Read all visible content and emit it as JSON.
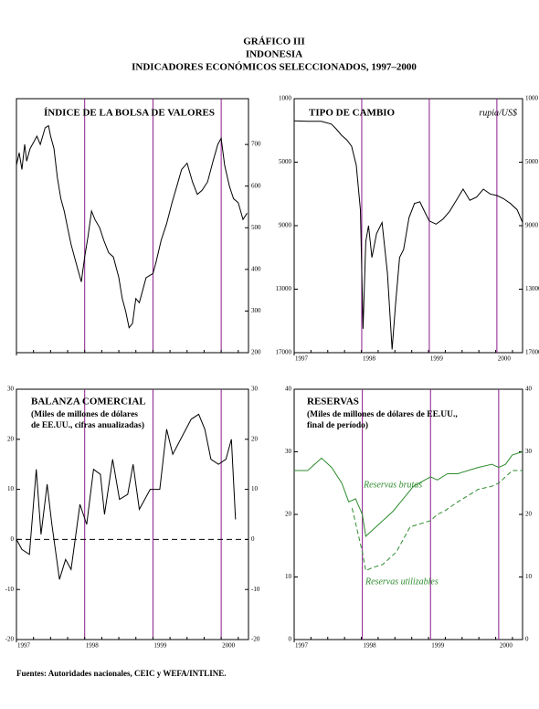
{
  "header": {
    "lines": [
      "GRÁFICO III",
      "INDONESIA",
      "INDICADORES ECONÓMICOS SELECCIONADOS, 1997–2000"
    ]
  },
  "footer": "Fuentes: Autoridades nacionales, CEIC y WEFA/INTLINE.",
  "chart_data": [
    {
      "type": "line",
      "title": "ÍNDICE DE LA BOLSA DE VALORES",
      "xlim": [
        1997,
        2000.4
      ],
      "xticks": [
        1997,
        1998,
        1999,
        2000
      ],
      "xtick_labels": false,
      "ylim": [
        200,
        810
      ],
      "yticks": [
        200,
        300,
        400,
        500,
        600,
        700
      ],
      "ytick_sides": [
        "right"
      ],
      "series": [
        {
          "color": "#000000",
          "x": [
            1997.0,
            1997.04,
            1997.08,
            1997.12,
            1997.15,
            1997.2,
            1997.25,
            1997.3,
            1997.35,
            1997.42,
            1997.47,
            1997.5,
            1997.55,
            1997.6,
            1997.65,
            1997.7,
            1997.75,
            1997.8,
            1997.85,
            1997.9,
            1997.95,
            1998.0,
            1998.05,
            1998.1,
            1998.15,
            1998.22,
            1998.28,
            1998.35,
            1998.42,
            1998.5,
            1998.55,
            1998.6,
            1998.65,
            1998.7,
            1998.75,
            1998.8,
            1998.9,
            1999.0,
            1999.05,
            1999.12,
            1999.2,
            1999.28,
            1999.35,
            1999.42,
            1999.5,
            1999.58,
            1999.65,
            1999.72,
            1999.8,
            1999.88,
            1999.95,
            2000.0,
            2000.05,
            2000.12,
            2000.18,
            2000.25,
            2000.32,
            2000.38
          ],
          "values": [
            650,
            680,
            640,
            700,
            660,
            690,
            705,
            720,
            700,
            740,
            745,
            720,
            690,
            620,
            570,
            540,
            500,
            460,
            430,
            400,
            370,
            430,
            480,
            540,
            520,
            500,
            470,
            440,
            430,
            380,
            330,
            300,
            260,
            270,
            330,
            320,
            380,
            390,
            420,
            470,
            510,
            560,
            600,
            640,
            655,
            610,
            580,
            590,
            610,
            660,
            700,
            715,
            650,
            600,
            570,
            560,
            520,
            535
          ]
        }
      ]
    },
    {
      "type": "line",
      "title": "TIPO DE CAMBIO",
      "y_label": "rupia/US$",
      "xlim": [
        1997,
        2000.38
      ],
      "xticks": [
        1997,
        1998,
        1999,
        2000
      ],
      "xtick_labels": true,
      "ylim": [
        17000,
        1000
      ],
      "yticks": [
        1000,
        5000,
        9000,
        13000,
        17000
      ],
      "ytick_sides": [
        "left",
        "right"
      ],
      "series": [
        {
          "color": "#000000",
          "x": [
            1997.0,
            1997.2,
            1997.4,
            1997.55,
            1997.62,
            1997.7,
            1997.78,
            1997.85,
            1997.92,
            1997.98,
            1998.02,
            1998.06,
            1998.1,
            1998.15,
            1998.22,
            1998.3,
            1998.38,
            1998.45,
            1998.5,
            1998.56,
            1998.62,
            1998.7,
            1998.78,
            1998.86,
            1998.94,
            1999.0,
            1999.1,
            1999.2,
            1999.3,
            1999.4,
            1999.5,
            1999.6,
            1999.7,
            1999.8,
            1999.9,
            2000.0,
            2000.1,
            2000.2,
            2000.3,
            2000.38
          ],
          "values": [
            2400,
            2420,
            2430,
            2600,
            2900,
            3300,
            3600,
            4000,
            5200,
            8000,
            15500,
            10000,
            9000,
            11000,
            9500,
            8800,
            12000,
            16800,
            14000,
            11000,
            10500,
            8500,
            7600,
            7500,
            8200,
            8700,
            8900,
            8600,
            8100,
            7400,
            6700,
            7400,
            7200,
            6700,
            7000,
            7100,
            7300,
            7600,
            8000,
            8800
          ]
        }
      ]
    },
    {
      "type": "line",
      "title": "BALANZA COMERCIAL",
      "subtitle": [
        "(Miles de millones de dólares",
        "de EE.UU., cifras anualizadas)"
      ],
      "xlim": [
        1997,
        2000.4
      ],
      "xticks": [
        1997,
        1998,
        1999,
        2000
      ],
      "xtick_labels": true,
      "ylim": [
        -20,
        30
      ],
      "yticks": [
        -20,
        -10,
        0,
        10,
        20,
        30
      ],
      "ytick_sides": [
        "left",
        "right"
      ],
      "reference_line": 0,
      "series": [
        {
          "color": "#000000",
          "x": [
            1997.0,
            1997.08,
            1997.19,
            1997.29,
            1997.36,
            1997.45,
            1997.52,
            1997.63,
            1997.72,
            1997.8,
            1997.93,
            1998.03,
            1998.13,
            1998.23,
            1998.29,
            1998.41,
            1998.51,
            1998.63,
            1998.71,
            1998.8,
            1998.96,
            1999.1,
            1999.2,
            1999.29,
            1999.56,
            1999.67,
            1999.76,
            1999.85,
            1999.96,
            2000.07,
            2000.15,
            2000.21
          ],
          "values": [
            0,
            -2,
            -3,
            14,
            1,
            11,
            3,
            -8,
            -4,
            -6,
            7,
            3,
            14,
            13,
            5,
            16,
            8,
            9,
            15,
            6,
            10,
            10,
            22,
            17,
            24,
            25,
            22,
            16,
            15,
            16,
            20,
            4
          ]
        }
      ]
    },
    {
      "type": "line",
      "title": "RESERVAS",
      "subtitle": [
        "(Miles de millones de dólares de EE.UU.,",
        "final de período)"
      ],
      "xlim": [
        1997,
        2000.35
      ],
      "xticks": [
        1997,
        1998,
        1999,
        2000
      ],
      "xtick_labels": true,
      "ylim": [
        0,
        40
      ],
      "yticks": [
        0,
        10,
        20,
        30,
        40
      ],
      "ytick_sides": [
        "left",
        "right"
      ],
      "series": [
        {
          "name": "Reservas brutas",
          "color": "#2e8b2e",
          "dash": false,
          "x": [
            1997.0,
            1997.2,
            1997.4,
            1997.55,
            1997.7,
            1997.8,
            1997.9,
            1998.0,
            1998.05,
            1998.1,
            1998.3,
            1998.45,
            1998.6,
            1998.75,
            1999.0,
            1999.1,
            1999.25,
            1999.4,
            1999.55,
            1999.7,
            1999.9,
            2000.0,
            2000.1,
            2000.2,
            2000.35
          ],
          "values": [
            27,
            27,
            29,
            27.5,
            25,
            22,
            22.5,
            20,
            16.5,
            17,
            19,
            20.5,
            22.5,
            24.5,
            26,
            25.5,
            26.5,
            26.5,
            27,
            27.5,
            28,
            27.5,
            28,
            29.5,
            30
          ]
        },
        {
          "name": "Reservas utilizables",
          "color": "#2e8b2e",
          "dash": true,
          "x": [
            1997.85,
            1998.0,
            1998.05,
            1998.15,
            1998.3,
            1998.5,
            1998.7,
            1999.0,
            1999.1,
            1999.2,
            1999.4,
            1999.55,
            1999.7,
            1999.9,
            2000.0,
            2000.1,
            2000.2,
            2000.35
          ],
          "values": [
            21,
            14,
            11,
            11.5,
            12,
            14,
            18,
            19,
            20,
            20.5,
            22,
            23,
            24,
            24.5,
            25,
            26,
            27,
            27
          ]
        }
      ]
    }
  ]
}
